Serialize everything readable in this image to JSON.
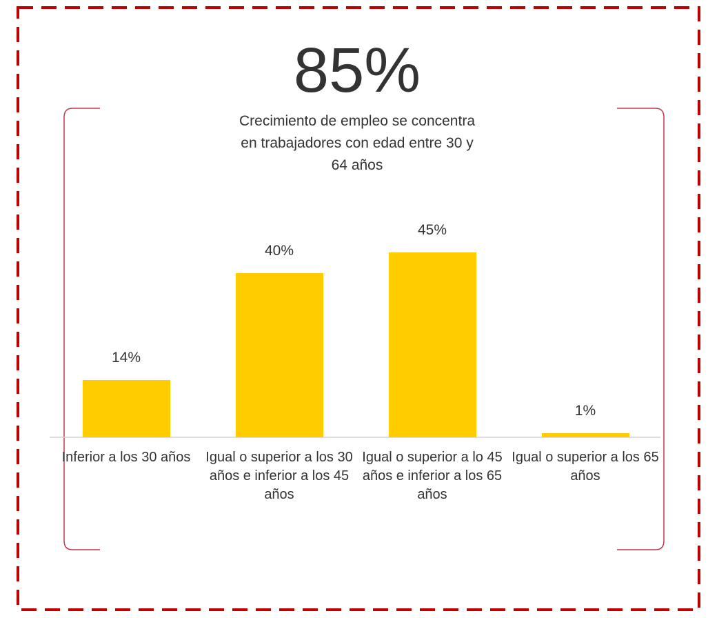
{
  "chart_data": {
    "type": "bar",
    "title": "85%",
    "subtitle": "Crecimiento de empleo se concentra en trabajadores con edad entre 30 y 64 años",
    "categories": [
      "Inferior a los 30 años",
      "Igual o superior a los 30 años e inferior a los 45 años",
      "Igual o superior a lo 45 años e inferior a los 65 años",
      "Igual o superior a los 65 años"
    ],
    "values": [
      14,
      40,
      45,
      1
    ],
    "value_labels": [
      "14%",
      "40%",
      "45%",
      "1%"
    ],
    "color": "#ffcc00"
  }
}
